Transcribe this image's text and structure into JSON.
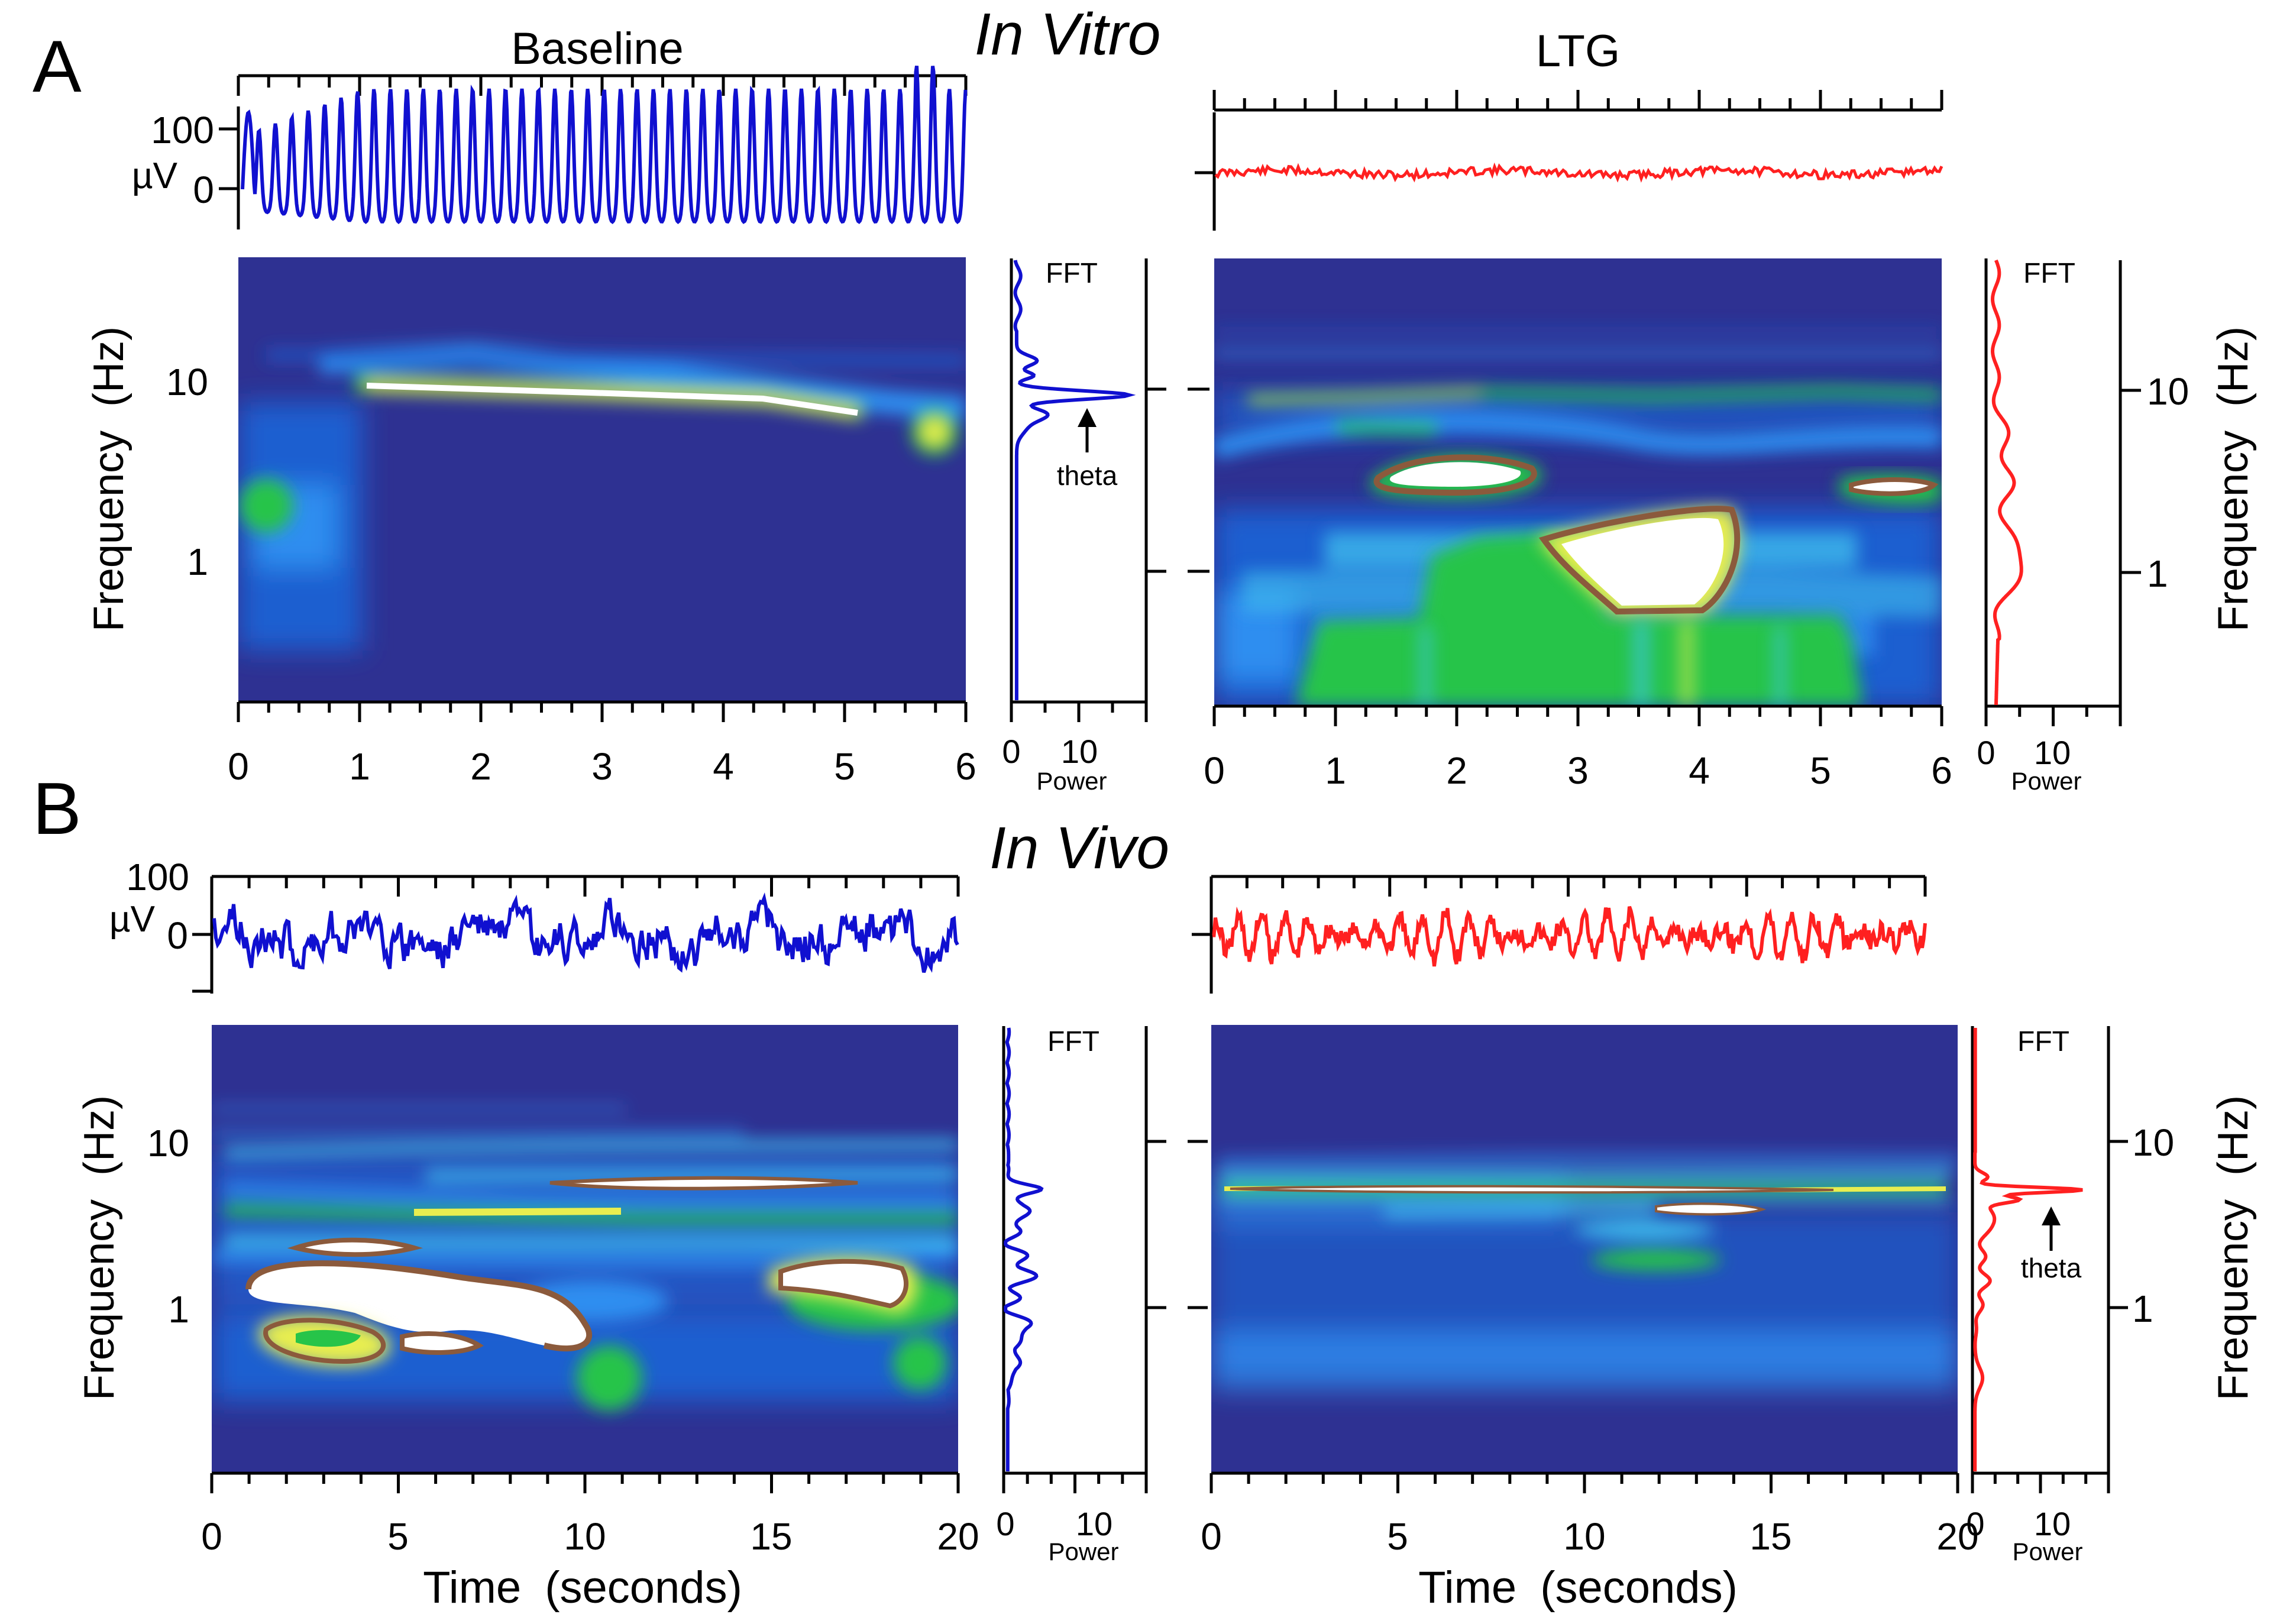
{
  "figure": {
    "panel_a_letter": "A",
    "panel_b_letter": "B",
    "section_a_title": "In Vitro",
    "section_b_title": "In Vivo",
    "col_baseline_title": "Baseline",
    "col_ltg_title": "LTG"
  },
  "colors": {
    "baseline": "#1010d0",
    "ltg": "#ff2020",
    "spectrogram_bg": "#2e3192",
    "blue_low": "#1e5fd0",
    "blue_mid": "#2f8ef0",
    "cyan": "#41c6f0",
    "green": "#27c449",
    "yellow": "#e8ee50",
    "brown": "#8b5a3c",
    "white": "#ffffff"
  },
  "chart_data": [
    {
      "id": "A-baseline-trace",
      "type": "line",
      "panel": "A",
      "series": [
        {
          "name": "Baseline",
          "color": "#1010d0"
        }
      ],
      "yticks": [
        "100",
        "0"
      ],
      "yunit": "µV",
      "x_range": [
        0,
        6
      ],
      "x_unit": "seconds",
      "waveform": "theta oscillation ~7-8 Hz, ~80 µV peaks",
      "approx_peak_count": 44
    },
    {
      "id": "A-ltg-trace",
      "type": "line",
      "panel": "A",
      "series": [
        {
          "name": "LTG",
          "color": "#ff2020"
        }
      ],
      "x_range": [
        0,
        6
      ],
      "x_unit": "seconds",
      "waveform": "flat noise near 0 µV"
    },
    {
      "id": "A-baseline-spectrogram",
      "type": "heatmap",
      "panel": "A",
      "xticks": [
        "0",
        "1",
        "2",
        "3",
        "4",
        "5",
        "6"
      ],
      "yticks": [
        "10",
        "1"
      ],
      "ylabel_parts": [
        "Frequency",
        "(Hz)"
      ],
      "yscale": "log",
      "xlim": [
        0,
        6
      ],
      "ylim": [
        0.2,
        40
      ]
    },
    {
      "id": "A-baseline-fft",
      "type": "line",
      "panel": "A",
      "title": "FFT",
      "series": [
        {
          "name": "Baseline",
          "color": "#1010d0"
        }
      ],
      "xticks": [
        "0",
        "10"
      ],
      "xlabel": "Power",
      "yscale": "log",
      "annotation": "theta",
      "peak": {
        "frequency_hz": 8.5,
        "power": 17
      }
    },
    {
      "id": "A-ltg-spectrogram",
      "type": "heatmap",
      "panel": "A",
      "xticks": [
        "0",
        "1",
        "2",
        "3",
        "4",
        "5",
        "6"
      ],
      "xlim": [
        0,
        6
      ],
      "ylim": [
        0.2,
        40
      ],
      "yscale": "log"
    },
    {
      "id": "A-ltg-fft",
      "type": "line",
      "panel": "A",
      "title": "FFT",
      "series": [
        {
          "name": "LTG",
          "color": "#ff2020"
        }
      ],
      "xticks": [
        "0",
        "10"
      ],
      "xlabel": "Power",
      "yticks": [
        "10",
        "1"
      ],
      "ylabel_parts": [
        "Frequency",
        "(Hz)"
      ],
      "yscale": "log"
    },
    {
      "id": "B-baseline-trace",
      "type": "line",
      "panel": "B",
      "series": [
        {
          "name": "Baseline",
          "color": "#1010d0"
        }
      ],
      "yticks": [
        "100",
        "0"
      ],
      "yunit": "µV",
      "x_range": [
        0,
        20
      ],
      "x_unit": "seconds",
      "waveform": "irregular slow activity, ±40 µV"
    },
    {
      "id": "B-ltg-trace",
      "type": "line",
      "panel": "B",
      "series": [
        {
          "name": "LTG",
          "color": "#ff2020"
        }
      ],
      "x_range": [
        0,
        20
      ],
      "x_unit": "seconds",
      "waveform": "regular theta-like activity, ±50 µV"
    },
    {
      "id": "B-baseline-spectrogram",
      "type": "heatmap",
      "panel": "B",
      "xticks": [
        "0",
        "5",
        "10",
        "15",
        "20"
      ],
      "xlabel_parts": [
        "Time",
        "(seconds)"
      ],
      "yticks": [
        "10",
        "1"
      ],
      "ylabel_parts": [
        "Frequency",
        "(Hz)"
      ],
      "yscale": "log",
      "xlim": [
        0,
        20
      ],
      "ylim": [
        0.1,
        40
      ]
    },
    {
      "id": "B-baseline-fft",
      "type": "line",
      "panel": "B",
      "title": "FFT",
      "series": [
        {
          "name": "Baseline",
          "color": "#1010d0"
        }
      ],
      "xticks": [
        "0",
        "10"
      ],
      "xlabel": "Power",
      "yscale": "log"
    },
    {
      "id": "B-ltg-spectrogram",
      "type": "heatmap",
      "panel": "B",
      "xticks": [
        "0",
        "5",
        "10",
        "15",
        "20"
      ],
      "xlabel_parts": [
        "Time",
        "(seconds)"
      ],
      "xlim": [
        0,
        20
      ],
      "ylim": [
        0.1,
        40
      ],
      "yscale": "log"
    },
    {
      "id": "B-ltg-fft",
      "type": "line",
      "panel": "B",
      "title": "FFT",
      "series": [
        {
          "name": "LTG",
          "color": "#ff2020"
        }
      ],
      "xticks": [
        "0",
        "10"
      ],
      "xlabel": "Power",
      "yticks": [
        "10",
        "1"
      ],
      "ylabel_parts": [
        "Frequency",
        "(Hz)"
      ],
      "yscale": "log",
      "annotation": "theta",
      "peak": {
        "frequency_hz": 5,
        "power": 17
      }
    }
  ]
}
